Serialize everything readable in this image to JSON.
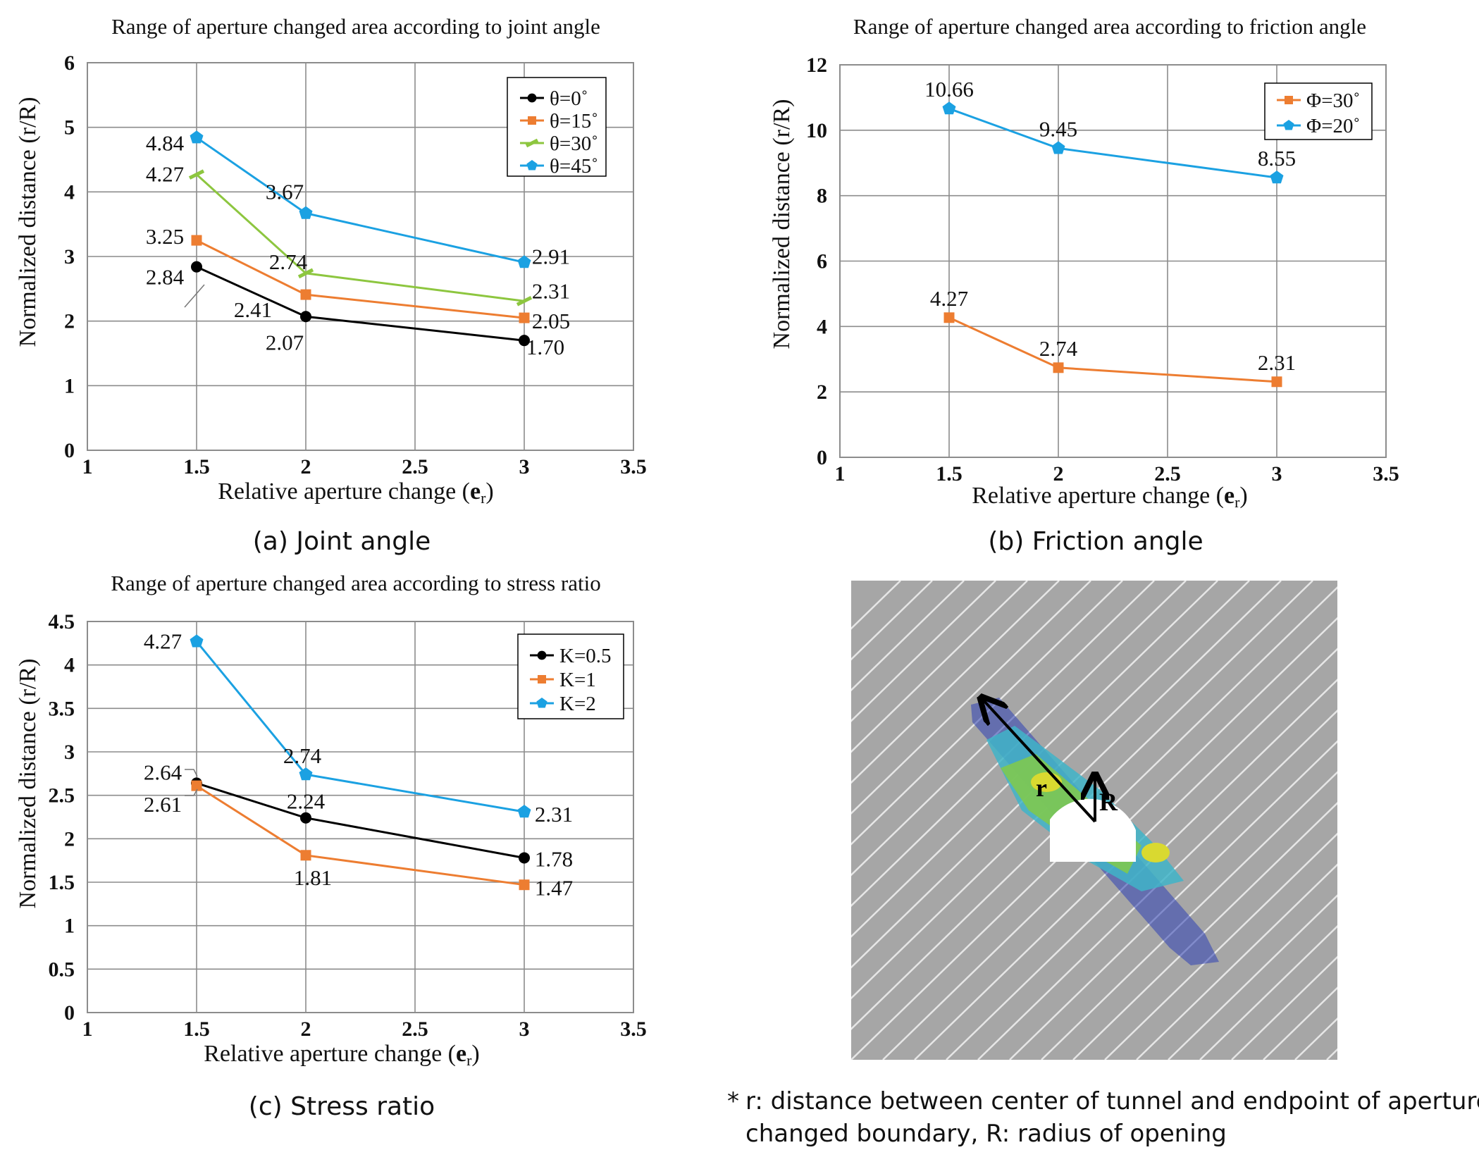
{
  "chart_data": [
    {
      "id": "joint",
      "type": "line",
      "title": "Range of aperture changed area according to joint angle",
      "xlabel": "Relative aperture change (",
      "xlabel_symbol": "e",
      "xlabel_sub": "r",
      "xlabel_close": ")",
      "ylabel": "Normalized distance (r/R)",
      "xlim": [
        1,
        3.5
      ],
      "ylim": [
        0,
        6
      ],
      "xticks": [
        "1",
        "1.5",
        "2",
        "2.5",
        "3",
        "3.5"
      ],
      "xtick_values": [
        1,
        1.5,
        2,
        2.5,
        3,
        3.5
      ],
      "yticks": [
        "0",
        "1",
        "2",
        "3",
        "4",
        "5",
        "6"
      ],
      "ytick_values": [
        0,
        1,
        2,
        3,
        4,
        5,
        6
      ],
      "grid": true,
      "legend_position": "top-right",
      "caption": "(a) Joint angle",
      "x": [
        1.5,
        2,
        3
      ],
      "series": [
        {
          "name": "θ=0˚",
          "color": "#000000",
          "marker": "circle",
          "values": [
            2.84,
            2.07,
            1.7
          ],
          "labels": [
            "2.84",
            "2.07",
            "1.70"
          ]
        },
        {
          "name": "θ=15˚",
          "color": "#ED7D31",
          "marker": "square",
          "values": [
            3.25,
            2.41,
            2.05
          ],
          "labels": [
            "3.25",
            "2.41",
            "2.05"
          ]
        },
        {
          "name": "θ=30˚",
          "color": "#8DC63F",
          "marker": "dash",
          "values": [
            4.27,
            2.74,
            2.31
          ],
          "labels": [
            "4.27",
            "2.74",
            "2.31"
          ]
        },
        {
          "name": "θ=45˚",
          "color": "#1BA1E2",
          "marker": "pentagon",
          "values": [
            4.84,
            3.67,
            2.91
          ],
          "labels": [
            "4.84",
            "3.67",
            "2.91"
          ]
        }
      ]
    },
    {
      "id": "friction",
      "type": "line",
      "title": "Range of aperture changed area according to friction angle",
      "xlabel": "Relative aperture change (",
      "xlabel_symbol": "e",
      "xlabel_sub": "r",
      "xlabel_close": ")",
      "ylabel": "Normalized distance (r/R)",
      "xlim": [
        1,
        3.5
      ],
      "ylim": [
        0,
        12
      ],
      "xticks": [
        "1",
        "1.5",
        "2",
        "2.5",
        "3",
        "3.5"
      ],
      "xtick_values": [
        1,
        1.5,
        2,
        2.5,
        3,
        3.5
      ],
      "yticks": [
        "0",
        "2",
        "4",
        "6",
        "8",
        "10",
        "12"
      ],
      "ytick_values": [
        0,
        2,
        4,
        6,
        8,
        10,
        12
      ],
      "grid": true,
      "legend_position": "top-right",
      "caption": "(b) Friction angle",
      "x": [
        1.5,
        2,
        3
      ],
      "series": [
        {
          "name": "Φ=30˚",
          "color": "#ED7D31",
          "marker": "square",
          "values": [
            4.27,
            2.74,
            2.31
          ],
          "labels": [
            "4.27",
            "2.74",
            "2.31"
          ]
        },
        {
          "name": "Φ=20˚",
          "color": "#1BA1E2",
          "marker": "pentagon",
          "values": [
            10.66,
            9.45,
            8.55
          ],
          "labels": [
            "10.66",
            "9.45",
            "8.55"
          ]
        }
      ]
    },
    {
      "id": "stress",
      "type": "line",
      "title": "Range of aperture changed area according to stress ratio",
      "xlabel": "Relative aperture change (",
      "xlabel_symbol": "e",
      "xlabel_sub": "r",
      "xlabel_close": ")",
      "ylabel": "Normalized distance (r/R)",
      "xlim": [
        1,
        3.5
      ],
      "ylim": [
        0,
        4.5
      ],
      "xticks": [
        "1",
        "1.5",
        "2",
        "2.5",
        "3",
        "3.5"
      ],
      "xtick_values": [
        1,
        1.5,
        2,
        2.5,
        3,
        3.5
      ],
      "yticks": [
        "0",
        "0.5",
        "1",
        "1.5",
        "2",
        "2.5",
        "3",
        "3.5",
        "4",
        "4.5"
      ],
      "ytick_values": [
        0,
        0.5,
        1,
        1.5,
        2,
        2.5,
        3,
        3.5,
        4,
        4.5
      ],
      "grid": true,
      "legend_position": "top-right",
      "caption": "(c) Stress ratio",
      "x": [
        1.5,
        2,
        3
      ],
      "series": [
        {
          "name": "K=0.5",
          "color": "#000000",
          "marker": "circle",
          "values": [
            2.64,
            2.24,
            1.78
          ],
          "labels": [
            "2.64",
            "2.24",
            "1.78"
          ]
        },
        {
          "name": "K=1",
          "color": "#ED7D31",
          "marker": "square",
          "values": [
            2.61,
            1.81,
            1.47
          ],
          "labels": [
            "2.61",
            "1.81",
            "1.47"
          ]
        },
        {
          "name": "K=2",
          "color": "#1BA1E2",
          "marker": "pentagon",
          "values": [
            4.27,
            2.74,
            2.31
          ],
          "labels": [
            "4.27",
            "2.74",
            "2.31"
          ]
        }
      ]
    }
  ],
  "diagram": {
    "label_r": "r",
    "label_R": "R",
    "colors": {
      "background": "#A6A6A6",
      "joint_lines": "#E6E6E6",
      "tunnel": "#FFFFFF",
      "arrow": "#000000"
    }
  },
  "note": {
    "marker": "*",
    "line1": "r: distance between center of tunnel and endpoint of aperture",
    "line2": "changed boundary, R: radius of opening"
  },
  "colors": {
    "grid": "#8C8C8C",
    "black": "#000000",
    "orange": "#ED7D31",
    "green": "#8DC63F",
    "blue": "#1BA1E2"
  }
}
